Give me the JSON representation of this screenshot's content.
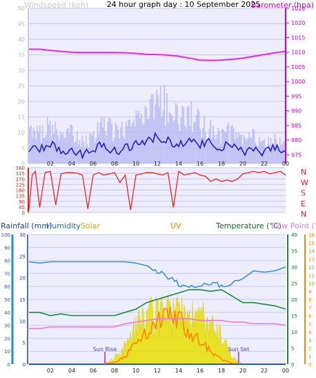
{
  "header": {
    "title": "24 hour graph day : 10 September 2025",
    "left_label": "Windspeed (kph)",
    "right_label": "Barometer (hpa)"
  },
  "colors": {
    "wind_avg": "#2020cc",
    "wind_gust": "#b8b8f4",
    "barometer": "#ee22ee",
    "wind_dir": "#ee2222",
    "humidity": "#3a8fe0",
    "temperature": "#1c8a3a",
    "dew_point": "#ee77ee",
    "solar": "#e8e000",
    "uv": "#ff8800",
    "rain": "#2255cc"
  },
  "chart_data": [
    {
      "type": "line",
      "id": "wind_pressure",
      "title": "24 hour graph day : 10 September 2025",
      "x_ticks": [
        "02",
        "04",
        "06",
        "08",
        "10",
        "12",
        "14",
        "16",
        "18",
        "20",
        "22",
        "00"
      ],
      "left_axis": {
        "label": "Windspeed (kph)",
        "ticks": [
          0,
          5,
          10,
          15,
          20,
          25,
          30,
          35,
          40,
          45,
          50
        ],
        "range": [
          0,
          50
        ]
      },
      "right_axis": {
        "label": "Barometer (hpa)",
        "ticks": [
          975,
          980,
          985,
          990,
          995,
          1000,
          1005,
          1010,
          1015,
          1020,
          1025
        ],
        "range": [
          972,
          1025
        ]
      },
      "series": [
        {
          "name": "Barometer",
          "axis": "right",
          "x": [
            0,
            1,
            2,
            3,
            4,
            5,
            6,
            7,
            8,
            9,
            10,
            11,
            12,
            13,
            14,
            15,
            16,
            17,
            18,
            19,
            20,
            21,
            22,
            23,
            24
          ],
          "values": [
            1011,
            1011,
            1010.6,
            1010.3,
            1010.0,
            1009.9,
            1009.9,
            1009.9,
            1009.9,
            1009.8,
            1009.6,
            1009.3,
            1009.2,
            1009.0,
            1008.6,
            1008.0,
            1007.3,
            1007.2,
            1007.3,
            1007.6,
            1008.0,
            1008.6,
            1009.2,
            1009.8,
            1010.3
          ]
        },
        {
          "name": "Wind average",
          "axis": "left",
          "x": [
            0,
            1,
            2,
            3,
            4,
            5,
            6,
            7,
            8,
            9,
            10,
            11,
            12,
            13,
            14,
            15,
            16,
            17,
            18,
            19,
            20,
            21,
            22,
            23,
            24
          ],
          "values": [
            5,
            4,
            6,
            4,
            5,
            3,
            5,
            6,
            4,
            5,
            6,
            7,
            9,
            7,
            6,
            8,
            6,
            7,
            5,
            6,
            3,
            4,
            3,
            5,
            4
          ]
        },
        {
          "name": "Wind gust",
          "axis": "left",
          "x": [
            0,
            1,
            2,
            3,
            4,
            5,
            6,
            7,
            8,
            9,
            10,
            11,
            12,
            13,
            14,
            15,
            16,
            17,
            18,
            19,
            20,
            21,
            22,
            23,
            24
          ],
          "values": [
            12,
            11,
            14,
            10,
            11,
            8,
            10,
            14,
            12,
            13,
            15,
            20,
            24,
            21,
            16,
            18,
            14,
            12,
            10,
            12,
            8,
            10,
            7,
            9,
            6
          ]
        }
      ]
    },
    {
      "type": "line",
      "id": "wind_direction",
      "x_ticks": [
        "02",
        "04",
        "06",
        "08",
        "10",
        "12",
        "14",
        "16",
        "18",
        "20",
        "22",
        "00"
      ],
      "left_axis": {
        "ticks": [
          0,
          45,
          90,
          135,
          180,
          225,
          270,
          315,
          360
        ],
        "range": [
          0,
          360
        ]
      },
      "right_axis": {
        "ticks": [
          "N",
          "W",
          "S",
          "E",
          "N"
        ]
      },
      "series": [
        {
          "name": "Wind direction",
          "x": [
            0,
            0.3,
            0.6,
            1,
            1.5,
            2,
            2.5,
            3,
            3.5,
            4,
            4.5,
            5,
            5.5,
            6,
            6.5,
            7,
            7.5,
            8,
            8.5,
            9,
            9.5,
            10,
            10.5,
            11,
            11.5,
            12,
            12.5,
            13,
            13.5,
            14,
            14.5,
            15,
            15.5,
            16,
            16.5,
            17,
            17.5,
            18,
            18.5,
            19,
            19.5,
            20,
            20.5,
            21,
            21.5,
            22,
            22.5,
            23,
            23.5,
            24
          ],
          "values": [
            20,
            300,
            330,
            40,
            320,
            330,
            60,
            310,
            320,
            320,
            315,
            300,
            30,
            300,
            320,
            300,
            310,
            320,
            240,
            300,
            20,
            300,
            310,
            320,
            320,
            310,
            300,
            320,
            40,
            330,
            300,
            310,
            320,
            300,
            290,
            250,
            270,
            250,
            260,
            250,
            270,
            310,
            320,
            330,
            320,
            330,
            310,
            320,
            330,
            300
          ]
        }
      ]
    },
    {
      "type": "line",
      "id": "rain_temp_solar",
      "x_ticks": [
        "02",
        "04",
        "06",
        "08",
        "10",
        "12",
        "14",
        "16",
        "18",
        "20",
        "22",
        "00"
      ],
      "legend": [
        "Rainfall (mm)",
        "Humidity",
        "Solar",
        "UV",
        "Temperature (°C)",
        "Dew Point (°C)"
      ],
      "rain_axis": {
        "label": "Rainfall (mm)",
        "ticks": [
          0,
          5,
          10,
          15,
          20,
          25,
          30
        ],
        "range": [
          0,
          30
        ]
      },
      "humidity_axis": {
        "ticks": [
          0,
          10,
          20,
          30,
          40,
          50,
          60,
          70,
          80,
          90,
          100
        ],
        "range": [
          0,
          100
        ]
      },
      "temperature_axis": {
        "ticks": [
          0,
          5,
          10,
          15,
          20,
          25,
          30,
          35,
          40
        ],
        "range": [
          0,
          40
        ]
      },
      "uv_axis": {
        "ticks": [
          0,
          1,
          2,
          3,
          4,
          5,
          6,
          7,
          8,
          9,
          10,
          11,
          12,
          13,
          14,
          15,
          16
        ],
        "range": [
          0,
          16
        ]
      },
      "annotations": [
        "Sun Rise",
        "Sun Set"
      ],
      "series": [
        {
          "name": "Humidity",
          "x": [
            0,
            1,
            2,
            3,
            4,
            5,
            6,
            7,
            8,
            9,
            10,
            11,
            12,
            13,
            14,
            15,
            16,
            17,
            18,
            19,
            20,
            21,
            22,
            23,
            24
          ],
          "values": [
            79,
            78,
            79,
            79,
            79,
            79,
            79,
            79,
            79,
            79,
            78,
            76,
            72,
            67,
            62,
            60,
            60,
            62,
            61,
            62,
            66,
            72,
            71,
            72,
            75
          ]
        },
        {
          "name": "Temperature (°C)",
          "x": [
            0,
            1,
            2,
            3,
            4,
            5,
            6,
            7,
            8,
            9,
            10,
            11,
            12,
            13,
            14,
            15,
            16,
            17,
            18,
            19,
            20,
            21,
            22,
            23,
            24
          ],
          "values": [
            16,
            16,
            15,
            15.5,
            15,
            15,
            15,
            15,
            15,
            16,
            17,
            19,
            20,
            21,
            22,
            23,
            23,
            22.5,
            23,
            21,
            19,
            19,
            18.5,
            18,
            17
          ]
        },
        {
          "name": "Dew Point (°C)",
          "x": [
            0,
            1,
            2,
            3,
            4,
            5,
            6,
            7,
            8,
            9,
            10,
            11,
            12,
            13,
            14,
            15,
            16,
            17,
            18,
            19,
            20,
            21,
            22,
            23,
            24
          ],
          "values": [
            11,
            11,
            11.5,
            11.5,
            11.5,
            11.5,
            11.5,
            11.5,
            11.5,
            12.5,
            13,
            13.5,
            14,
            14,
            14,
            14,
            13.5,
            13.5,
            13.5,
            13,
            13,
            12.5,
            12.5,
            12.5,
            12
          ]
        },
        {
          "name": "Solar",
          "x": [
            0,
            6,
            7,
            8,
            9,
            10,
            11,
            12,
            13,
            14,
            15,
            16,
            17,
            18,
            19,
            20,
            24
          ],
          "values": [
            0,
            0,
            0,
            6,
            16,
            34,
            42,
            48,
            52,
            55,
            48,
            43,
            35,
            24,
            6,
            0,
            0
          ]
        },
        {
          "name": "UV",
          "x": [
            0,
            6,
            7,
            8,
            9,
            10,
            11,
            12,
            13,
            14,
            15,
            16,
            17,
            18,
            19,
            20,
            24
          ],
          "values": [
            0,
            0,
            0,
            0.2,
            1,
            2.5,
            4,
            5.5,
            6,
            5.5,
            4,
            3,
            1.5,
            0.6,
            0.1,
            0,
            0
          ]
        },
        {
          "name": "Rainfall (mm)",
          "x": [
            0,
            24
          ],
          "values": [
            0,
            0
          ]
        }
      ]
    }
  ]
}
